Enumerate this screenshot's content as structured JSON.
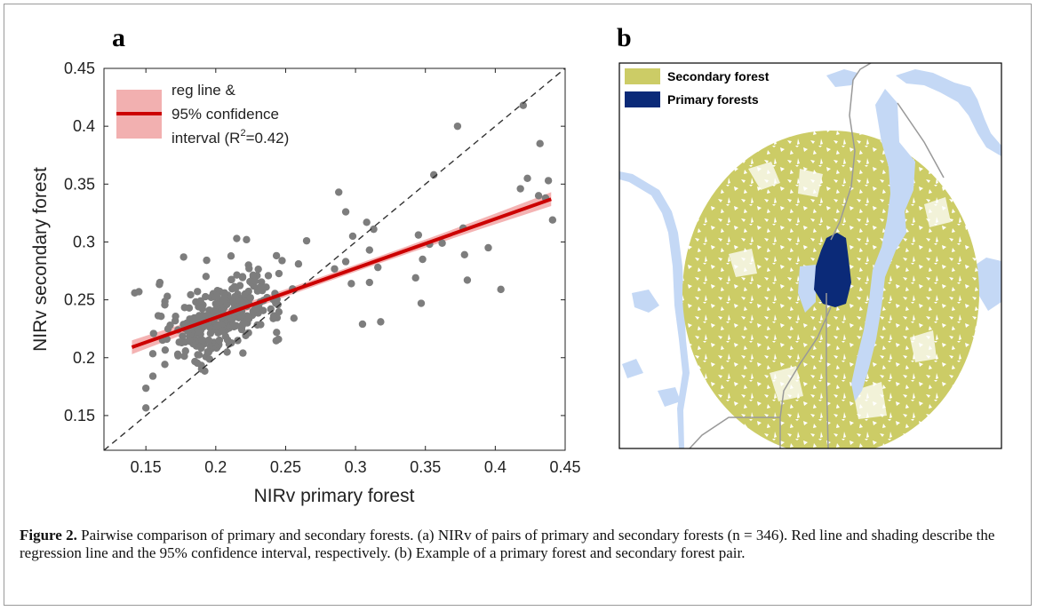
{
  "panel_a": {
    "letter": "a",
    "chart_data": {
      "type": "scatter",
      "xlabel": "NIRv primary forest",
      "ylabel": "NIRv secondary forest",
      "xlim": [
        0.12,
        0.45
      ],
      "ylim": [
        0.12,
        0.45
      ],
      "xticks": [
        "0.15",
        "0.2",
        "0.25",
        "0.3",
        "0.35",
        "0.4",
        "0.45"
      ],
      "yticks": [
        "0.15",
        "0.2",
        "0.25",
        "0.3",
        "0.35",
        "0.4",
        "0.45"
      ],
      "grid": false,
      "legend_position": "top-left",
      "legend": {
        "line1": "reg line &",
        "line2": "95% confidence",
        "line3_prefix": "interval (R",
        "line3_sup": "2",
        "line3_suffix": "=0.42)"
      },
      "reference_line": {
        "style": "dashed",
        "color": "#333333",
        "x": [
          0.12,
          0.45
        ],
        "y": [
          0.12,
          0.45
        ]
      },
      "regression": {
        "x": [
          0.14,
          0.44
        ],
        "y": [
          0.209,
          0.337
        ],
        "ci_halfwidth_ends": 0.006,
        "ci_halfwidth_mid": 0.003,
        "line_color": "#cc0000",
        "band_color": "#f2a6a6"
      },
      "point_color": "#7d7d7d",
      "outliers": [
        {
          "x": 0.142,
          "y": 0.256
        },
        {
          "x": 0.145,
          "y": 0.257
        },
        {
          "x": 0.155,
          "y": 0.184
        },
        {
          "x": 0.165,
          "y": 0.216
        },
        {
          "x": 0.177,
          "y": 0.287
        },
        {
          "x": 0.16,
          "y": 0.265
        },
        {
          "x": 0.215,
          "y": 0.303
        },
        {
          "x": 0.222,
          "y": 0.302
        },
        {
          "x": 0.265,
          "y": 0.301
        },
        {
          "x": 0.288,
          "y": 0.343
        },
        {
          "x": 0.293,
          "y": 0.326
        },
        {
          "x": 0.298,
          "y": 0.305
        },
        {
          "x": 0.308,
          "y": 0.317
        },
        {
          "x": 0.313,
          "y": 0.311
        },
        {
          "x": 0.31,
          "y": 0.293
        },
        {
          "x": 0.293,
          "y": 0.283
        },
        {
          "x": 0.305,
          "y": 0.229
        },
        {
          "x": 0.318,
          "y": 0.231
        },
        {
          "x": 0.297,
          "y": 0.264
        },
        {
          "x": 0.31,
          "y": 0.265
        },
        {
          "x": 0.316,
          "y": 0.278
        },
        {
          "x": 0.343,
          "y": 0.269
        },
        {
          "x": 0.345,
          "y": 0.306
        },
        {
          "x": 0.348,
          "y": 0.285
        },
        {
          "x": 0.347,
          "y": 0.247
        },
        {
          "x": 0.353,
          "y": 0.298
        },
        {
          "x": 0.356,
          "y": 0.358
        },
        {
          "x": 0.362,
          "y": 0.299
        },
        {
          "x": 0.373,
          "y": 0.4
        },
        {
          "x": 0.377,
          "y": 0.312
        },
        {
          "x": 0.38,
          "y": 0.267
        },
        {
          "x": 0.378,
          "y": 0.289
        },
        {
          "x": 0.395,
          "y": 0.295
        },
        {
          "x": 0.404,
          "y": 0.259
        },
        {
          "x": 0.42,
          "y": 0.418
        },
        {
          "x": 0.432,
          "y": 0.385
        },
        {
          "x": 0.418,
          "y": 0.346
        },
        {
          "x": 0.423,
          "y": 0.355
        },
        {
          "x": 0.431,
          "y": 0.34
        },
        {
          "x": 0.436,
          "y": 0.338
        },
        {
          "x": 0.438,
          "y": 0.353
        },
        {
          "x": 0.441,
          "y": 0.319
        }
      ],
      "cluster": {
        "n": 304,
        "x_mean": 0.205,
        "x_sd": 0.022,
        "x_min": 0.15,
        "x_max": 0.285,
        "slope": 0.43,
        "intercept": 0.148,
        "y_sd": 0.016,
        "seed": 7
      }
    }
  },
  "panel_b": {
    "letter": "b",
    "legend": [
      {
        "label": "Secondary forest",
        "color": "#cccc66"
      },
      {
        "label": "Primary forests",
        "color": "#0b2a78"
      }
    ],
    "colors": {
      "water": "#c4d8f5",
      "road": "#999999",
      "frame": "#000000"
    }
  },
  "caption": {
    "label": "Figure 2.",
    "text": " Pairwise comparison of primary and secondary forests. (a) NIRv of pairs of primary and secondary forests (n = 346). Red line and shading describe the regression line and the 95% confidence interval, respectively. (b) Example of a primary forest and secondary forest pair."
  }
}
